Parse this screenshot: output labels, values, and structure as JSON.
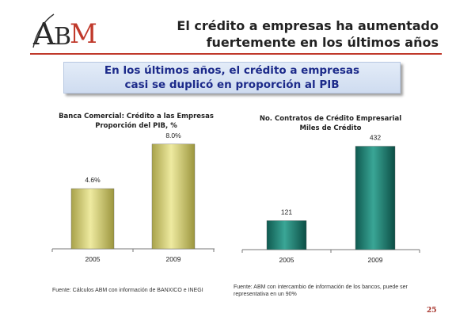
{
  "logo": {
    "text": "ABM"
  },
  "header": {
    "title_line1": "El crédito a empresas ha aumentado",
    "title_line2": "fuertemente en los últimos años",
    "accent_color": "#c0392b"
  },
  "callout": {
    "line1": "En los últimos  años, el crédito a empresas",
    "line2": "casi se duplicó en proporción al PIB"
  },
  "chart_data": [
    {
      "type": "bar",
      "title": "Banca Comercial: Crédito a las Empresas",
      "subtitle": "Proporción del PIB, %",
      "categories": [
        "2005",
        "2009"
      ],
      "values": [
        4.6,
        8.0
      ],
      "value_labels": [
        "4.6%",
        "8.0%"
      ],
      "ylim": [
        0,
        9.2
      ],
      "grid": false,
      "bar_color": "#c9c462"
    },
    {
      "type": "bar",
      "title": "No. Contratos de Crédito Empresarial",
      "subtitle": "Miles de Crédito",
      "categories": [
        "2005",
        "2009"
      ],
      "values": [
        121,
        432
      ],
      "value_labels": [
        "121",
        "432"
      ],
      "ylim": [
        0,
        490
      ],
      "grid": false,
      "bar_color": "#1f7f72"
    }
  ],
  "sources": {
    "left": "Fuente: Cálculos ABM  con información de   BANXICO e INEGI",
    "right": "Fuente: ABM con intercambio de información de los bancos, puede ser representativa en un 90%"
  },
  "page_number": "25"
}
